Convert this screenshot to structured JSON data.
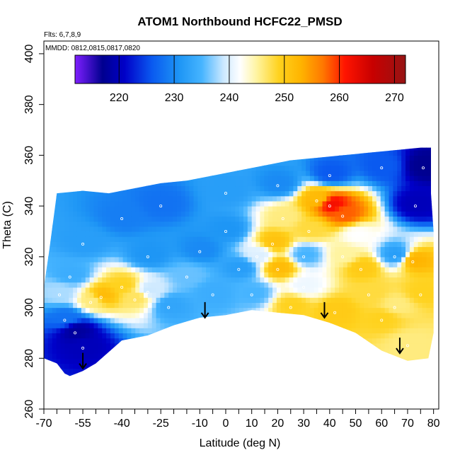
{
  "chart_data": {
    "type": "heatmap",
    "title": "ATOM1 Northbound HCFC22_PMSD",
    "annotations": [
      "Flts: 6,7,8,9",
      "MMDD: 0812,0815,0817,0820"
    ],
    "xlabel": "Latitude (deg N)",
    "ylabel": "Theta (C)",
    "xlim": [
      -70,
      82
    ],
    "ylim": [
      260,
      405
    ],
    "x_ticks": [
      -70,
      -55,
      -40,
      -25,
      -10,
      0,
      10,
      20,
      30,
      40,
      50,
      60,
      70,
      80
    ],
    "x_minor_ticks": [
      -65,
      -60,
      -50,
      -45,
      -35,
      -30,
      -20,
      -15,
      -5,
      5,
      15,
      25,
      35,
      45,
      55,
      65,
      75
    ],
    "y_ticks": [
      260,
      280,
      300,
      320,
      340,
      360,
      380,
      400
    ],
    "colorbar": {
      "range": [
        212,
        272
      ],
      "ticks": [
        220,
        230,
        240,
        250,
        260,
        270
      ],
      "dividers": [
        220,
        230,
        240,
        250,
        260,
        270
      ],
      "stops": [
        {
          "v": 212,
          "c": "#7f1fff"
        },
        {
          "v": 217,
          "c": "#00008f"
        },
        {
          "v": 221,
          "c": "#0000c8"
        },
        {
          "v": 226,
          "c": "#0a5af0"
        },
        {
          "v": 231,
          "c": "#1e96f5"
        },
        {
          "v": 235,
          "c": "#46b4ff"
        },
        {
          "v": 239,
          "c": "#cde9ff"
        },
        {
          "v": 242,
          "c": "#ffffff"
        },
        {
          "v": 245,
          "c": "#fff4a0"
        },
        {
          "v": 249,
          "c": "#ffd21e"
        },
        {
          "v": 253,
          "c": "#ffb400"
        },
        {
          "v": 257,
          "c": "#ff7800"
        },
        {
          "v": 261,
          "c": "#ff1400"
        },
        {
          "v": 266,
          "c": "#c80000"
        },
        {
          "v": 272,
          "c": "#961414"
        }
      ]
    },
    "outline": {
      "top": [
        [
          -70,
          308
        ],
        [
          -68,
          322
        ],
        [
          -65,
          345
        ],
        [
          -55,
          346
        ],
        [
          -45,
          345
        ],
        [
          -35,
          347
        ],
        [
          -25,
          349
        ],
        [
          -15,
          350
        ],
        [
          -5,
          352
        ],
        [
          5,
          354
        ],
        [
          15,
          356
        ],
        [
          25,
          358
        ],
        [
          35,
          359
        ],
        [
          45,
          360
        ],
        [
          55,
          361
        ],
        [
          65,
          362
        ],
        [
          75,
          363
        ],
        [
          79,
          363
        ],
        [
          79,
          345
        ],
        [
          80,
          330
        ],
        [
          80,
          290
        ],
        [
          78,
          280
        ],
        [
          70,
          279
        ],
        [
          60,
          283
        ],
        [
          50,
          290
        ],
        [
          40,
          294
        ],
        [
          30,
          297
        ],
        [
          20,
          298
        ],
        [
          10,
          299
        ],
        [
          0,
          297
        ],
        [
          -10,
          296
        ],
        [
          -20,
          293
        ],
        [
          -30,
          289
        ],
        [
          -40,
          287
        ],
        [
          -50,
          278
        ],
        [
          -55,
          275
        ],
        [
          -60,
          273
        ],
        [
          -62,
          274
        ],
        [
          -65,
          278
        ],
        [
          -70,
          280
        ]
      ]
    },
    "ctrl_points": [
      {
        "lat": -58,
        "theta": 290,
        "v": 218
      },
      {
        "lat": -55,
        "theta": 284,
        "v": 220
      },
      {
        "lat": -62,
        "theta": 295,
        "v": 228
      },
      {
        "lat": -64,
        "theta": 305,
        "v": 238
      },
      {
        "lat": -60,
        "theta": 312,
        "v": 234
      },
      {
        "lat": -52,
        "theta": 302,
        "v": 246
      },
      {
        "lat": -48,
        "theta": 304,
        "v": 252
      },
      {
        "lat": -40,
        "theta": 308,
        "v": 249
      },
      {
        "lat": -35,
        "theta": 303,
        "v": 247
      },
      {
        "lat": -30,
        "theta": 306,
        "v": 239
      },
      {
        "lat": -22,
        "theta": 300,
        "v": 233
      },
      {
        "lat": -55,
        "theta": 325,
        "v": 232
      },
      {
        "lat": -40,
        "theta": 335,
        "v": 229
      },
      {
        "lat": -25,
        "theta": 340,
        "v": 228
      },
      {
        "lat": -10,
        "theta": 322,
        "v": 230
      },
      {
        "lat": -5,
        "theta": 305,
        "v": 234
      },
      {
        "lat": 0,
        "theta": 330,
        "v": 231
      },
      {
        "lat": 5,
        "theta": 315,
        "v": 232
      },
      {
        "lat": 10,
        "theta": 305,
        "v": 235
      },
      {
        "lat": 12,
        "theta": 320,
        "v": 240
      },
      {
        "lat": 18,
        "theta": 325,
        "v": 251
      },
      {
        "lat": 20,
        "theta": 315,
        "v": 252
      },
      {
        "lat": 22,
        "theta": 335,
        "v": 246
      },
      {
        "lat": 25,
        "theta": 300,
        "v": 249
      },
      {
        "lat": 30,
        "theta": 320,
        "v": 235
      },
      {
        "lat": 32,
        "theta": 330,
        "v": 248
      },
      {
        "lat": 35,
        "theta": 342,
        "v": 252
      },
      {
        "lat": 40,
        "theta": 340,
        "v": 262
      },
      {
        "lat": 45,
        "theta": 336,
        "v": 258
      },
      {
        "lat": 45,
        "theta": 320,
        "v": 245
      },
      {
        "lat": 50,
        "theta": 328,
        "v": 242
      },
      {
        "lat": 52,
        "theta": 315,
        "v": 250
      },
      {
        "lat": 55,
        "theta": 305,
        "v": 248
      },
      {
        "lat": 42,
        "theta": 298,
        "v": 250
      },
      {
        "lat": 60,
        "theta": 295,
        "v": 249
      },
      {
        "lat": 70,
        "theta": 285,
        "v": 246
      },
      {
        "lat": 65,
        "theta": 320,
        "v": 232
      },
      {
        "lat": 72,
        "theta": 318,
        "v": 253
      },
      {
        "lat": 75,
        "theta": 305,
        "v": 249
      },
      {
        "lat": 73,
        "theta": 340,
        "v": 220
      },
      {
        "lat": 76,
        "theta": 355,
        "v": 217
      },
      {
        "lat": 60,
        "theta": 355,
        "v": 226
      },
      {
        "lat": 40,
        "theta": 352,
        "v": 226
      },
      {
        "lat": 20,
        "theta": 348,
        "v": 230
      },
      {
        "lat": 0,
        "theta": 345,
        "v": 232
      },
      {
        "lat": -30,
        "theta": 320,
        "v": 231
      },
      {
        "lat": -15,
        "theta": 312,
        "v": 236
      },
      {
        "lat": 30,
        "theta": 308,
        "v": 241
      },
      {
        "lat": 65,
        "theta": 300,
        "v": 246
      }
    ],
    "arrows": [
      {
        "lat": -55,
        "theta": 276
      },
      {
        "lat": -8,
        "theta": 296
      },
      {
        "lat": 38,
        "theta": 296
      },
      {
        "lat": 67,
        "theta": 282
      }
    ]
  }
}
